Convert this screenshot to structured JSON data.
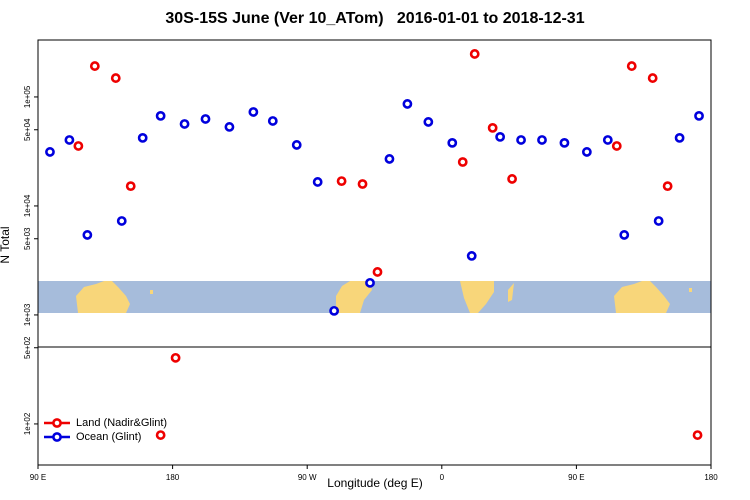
{
  "chart_data": {
    "type": "scatter",
    "title": "30S-15S June (Ver 10_ATom)   2016-01-01 to 2018-12-31",
    "x_label": "Longitude (deg E)",
    "y_label": "N Total",
    "log_y": true,
    "legend": "lower left",
    "xlim": [
      90,
      540
    ],
    "xticks": [
      {
        "value": 90,
        "label": "90 E"
      },
      180,
      {
        "value": 270,
        "label": "90 W"
      },
      {
        "value": 360,
        "label": "0"
      },
      {
        "value": 450,
        "label": "90 E"
      },
      {
        "value": 540,
        "label": "180"
      }
    ],
    "ylim": [
      42,
      333000
    ],
    "yticks": [
      {
        "value": 100,
        "label": "1e+02"
      },
      {
        "value": 500,
        "label": "5e+02"
      },
      {
        "value": 1000,
        "label": "1e+03"
      },
      {
        "value": 5000,
        "label": "5e+03"
      },
      {
        "value": 10000,
        "label": "1e+04"
      },
      {
        "value": 50000,
        "label": "5e+04"
      },
      {
        "value": 100000,
        "label": "1e+05"
      }
    ],
    "series": [
      {
        "name": "Land (Nadir&Glint)",
        "color": "#ee0000",
        "x": [
          117,
          128,
          142,
          152,
          172,
          182,
          293,
          307,
          317,
          374,
          382,
          394,
          407,
          477,
          487,
          501,
          511,
          531
        ],
        "values": [
          35500,
          192000,
          149000,
          15200,
          79,
          404,
          16900,
          15900,
          2480,
          25300,
          248000,
          52000,
          17700,
          35500,
          192000,
          149000,
          15200,
          79
        ]
      },
      {
        "name": "Ocean (Glint)",
        "color": "#0000dd",
        "x": [
          98,
          111,
          123,
          146,
          160,
          172,
          188,
          202,
          218,
          234,
          247,
          263,
          277,
          288,
          312,
          325,
          337,
          351,
          367,
          380,
          399,
          413,
          427,
          442,
          457,
          471,
          482,
          505,
          519,
          532
        ],
        "values": [
          31300,
          40300,
          5420,
          7280,
          42100,
          67000,
          56500,
          62800,
          53100,
          72800,
          60200,
          36300,
          16600,
          1090,
          1970,
          27000,
          86300,
          59000,
          37900,
          3480,
          43000,
          40300,
          40300,
          37900,
          31300,
          40300,
          5420,
          7280,
          42100,
          67000
        ]
      }
    ]
  }
}
